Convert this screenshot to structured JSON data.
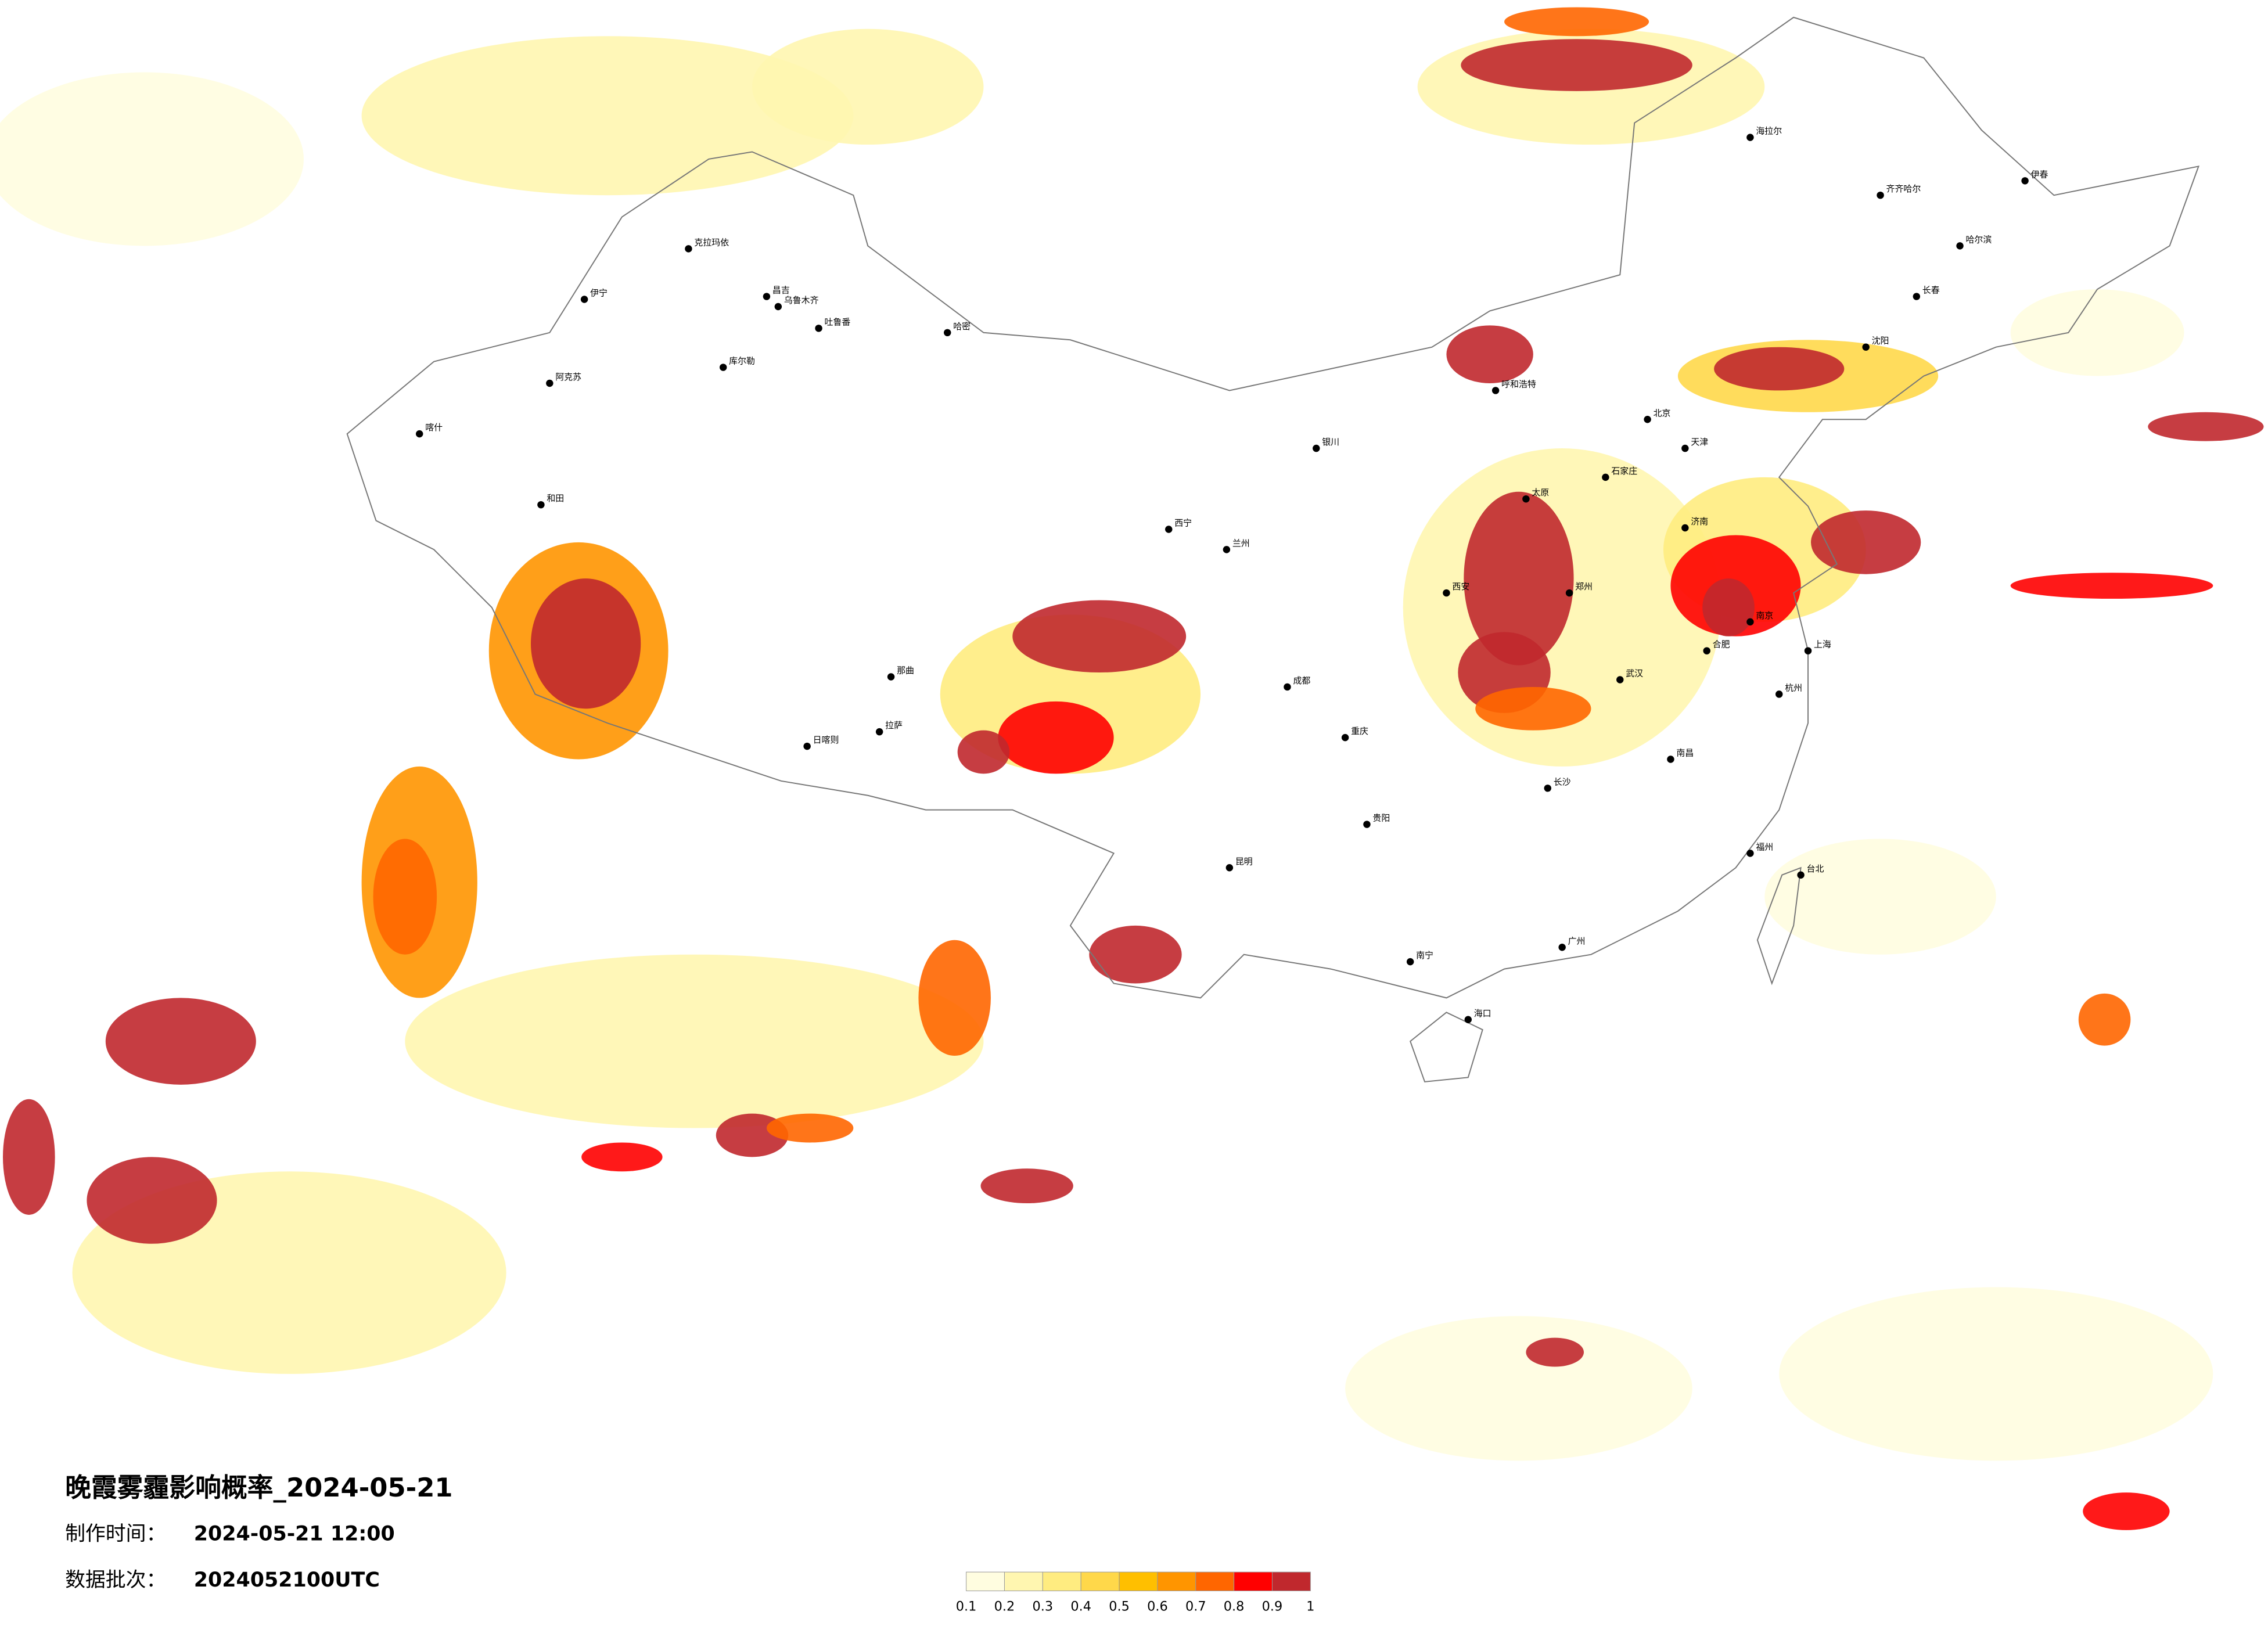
{
  "title": "晚霞雾霾影响概率_2024-05-21",
  "info": [
    {
      "label": "制作时间：",
      "value": "2024-05-21 12:00"
    },
    {
      "label": "数据批次：",
      "value": "2024052100UTC"
    }
  ],
  "legend": {
    "colors": [
      "#fffde0",
      "#fff6b0",
      "#ffec80",
      "#ffd84a",
      "#ffbf00",
      "#ff9500",
      "#ff6600",
      "#ff0000",
      "#c0282d"
    ],
    "ticks": [
      0.1,
      0.2,
      0.3,
      0.4,
      0.5,
      0.6,
      0.7,
      0.8,
      0.9,
      1
    ]
  },
  "cities": [
    "克拉玛依",
    "伊宁",
    "阿克苏",
    "喀什",
    "和田",
    "哈密",
    "昌吉",
    "乌鲁木齐",
    "吐鲁番",
    "库尔勒",
    "拉萨",
    "日喀则",
    "那曲",
    "西宁",
    "兰州",
    "银川",
    "呼和浩特",
    "北京",
    "天津",
    "石家庄",
    "太原",
    "济南",
    "郑州",
    "西安",
    "成都",
    "重庆",
    "武汉",
    "长沙",
    "南昌",
    "合肥",
    "南京",
    "上海",
    "杭州",
    "福州",
    "广州",
    "南宁",
    "海口",
    "贵阳",
    "昆明",
    "哈尔滨",
    "长春",
    "沈阳",
    "台北",
    "海拉尔",
    "齐齐哈尔",
    "伊春"
  ]
}
